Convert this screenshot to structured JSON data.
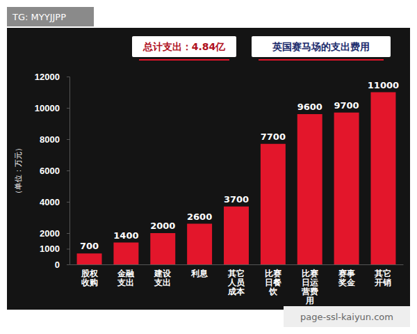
{
  "chart_data": {
    "type": "bar",
    "title": "英国赛马场的支出费用",
    "subtitle": "总计支出：4.84亿",
    "y_label": "（单位：万元）",
    "annotations": [
      "TG: MYYJJPP",
      "page-ssl-kaiyun.com"
    ],
    "categories": [
      "股权收购",
      "金融支出",
      "建设支出",
      "利息",
      "其它人员成本",
      "比赛日餐饮",
      "比赛日运营费用",
      "赛事奖金",
      "其它开销"
    ],
    "values": [
      700,
      1400,
      2000,
      2600,
      3700,
      7700,
      9600,
      9700,
      11000
    ],
    "color": "#e3162b",
    "ylim": [
      0,
      12000
    ],
    "yticks": [
      0,
      1000,
      2000,
      4000,
      6000,
      8000,
      10000,
      12000
    ],
    "grid": false,
    "data_labels": true
  }
}
